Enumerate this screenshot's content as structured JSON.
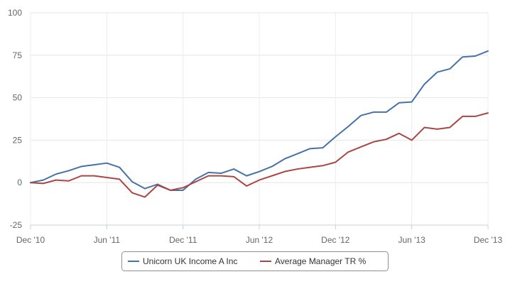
{
  "chart_data": {
    "type": "line",
    "title": "",
    "xlabel": "",
    "ylabel": "",
    "x_tick_labels": [
      "Dec '10",
      "Jun '11",
      "Dec '11",
      "Jun '12",
      "Dec '12",
      "Jun '13",
      "Dec '13"
    ],
    "y_tick_labels": [
      "100",
      "75",
      "50",
      "25",
      "0",
      "-25"
    ],
    "ylim": [
      -25,
      100
    ],
    "y_ticks": [
      100,
      75,
      50,
      25,
      0,
      -25
    ],
    "grid": true,
    "legend_position": "bottom-center",
    "x": [
      "Dec '10",
      "Jan '11",
      "Feb '11",
      "Mar '11",
      "Apr '11",
      "May '11",
      "Jun '11",
      "Jul '11",
      "Aug '11",
      "Sep '11",
      "Oct '11",
      "Nov '11",
      "Dec '11",
      "Jan '12",
      "Feb '12",
      "Mar '12",
      "Apr '12",
      "May '12",
      "Jun '12",
      "Jul '12",
      "Aug '12",
      "Sep '12",
      "Oct '12",
      "Nov '12",
      "Dec '12",
      "Jan '13",
      "Feb '13",
      "Mar '13",
      "Apr '13",
      "May '13",
      "Jun '13",
      "Jul '13",
      "Aug '13",
      "Sep '13",
      "Oct '13",
      "Nov '13",
      "Dec '13"
    ],
    "series": [
      {
        "name": "Unicorn UK Income A Inc",
        "color": "#4572a7",
        "values": [
          0,
          1.5,
          5,
          7,
          9.5,
          10.5,
          11.5,
          9,
          0.5,
          -3.5,
          -1,
          -4.5,
          -4.5,
          2,
          6,
          5.5,
          8,
          4,
          6.5,
          9.5,
          14,
          17,
          20,
          20.5,
          27,
          33,
          39.5,
          41.5,
          41.5,
          47,
          47.5,
          58,
          65,
          67,
          74,
          74.5,
          77.5
        ]
      },
      {
        "name": "Average Manager TR %",
        "color": "#aa4643",
        "values": [
          0,
          -0.5,
          1.5,
          1,
          4,
          4,
          3,
          2,
          -6,
          -8.5,
          -1.5,
          -4.5,
          -3,
          0.5,
          4,
          4,
          3.5,
          -2,
          1.5,
          4,
          6.5,
          8,
          9,
          10,
          12,
          18,
          21,
          24,
          25.5,
          29,
          25,
          32.5,
          31.5,
          32.5,
          39,
          39,
          41
        ]
      }
    ]
  }
}
